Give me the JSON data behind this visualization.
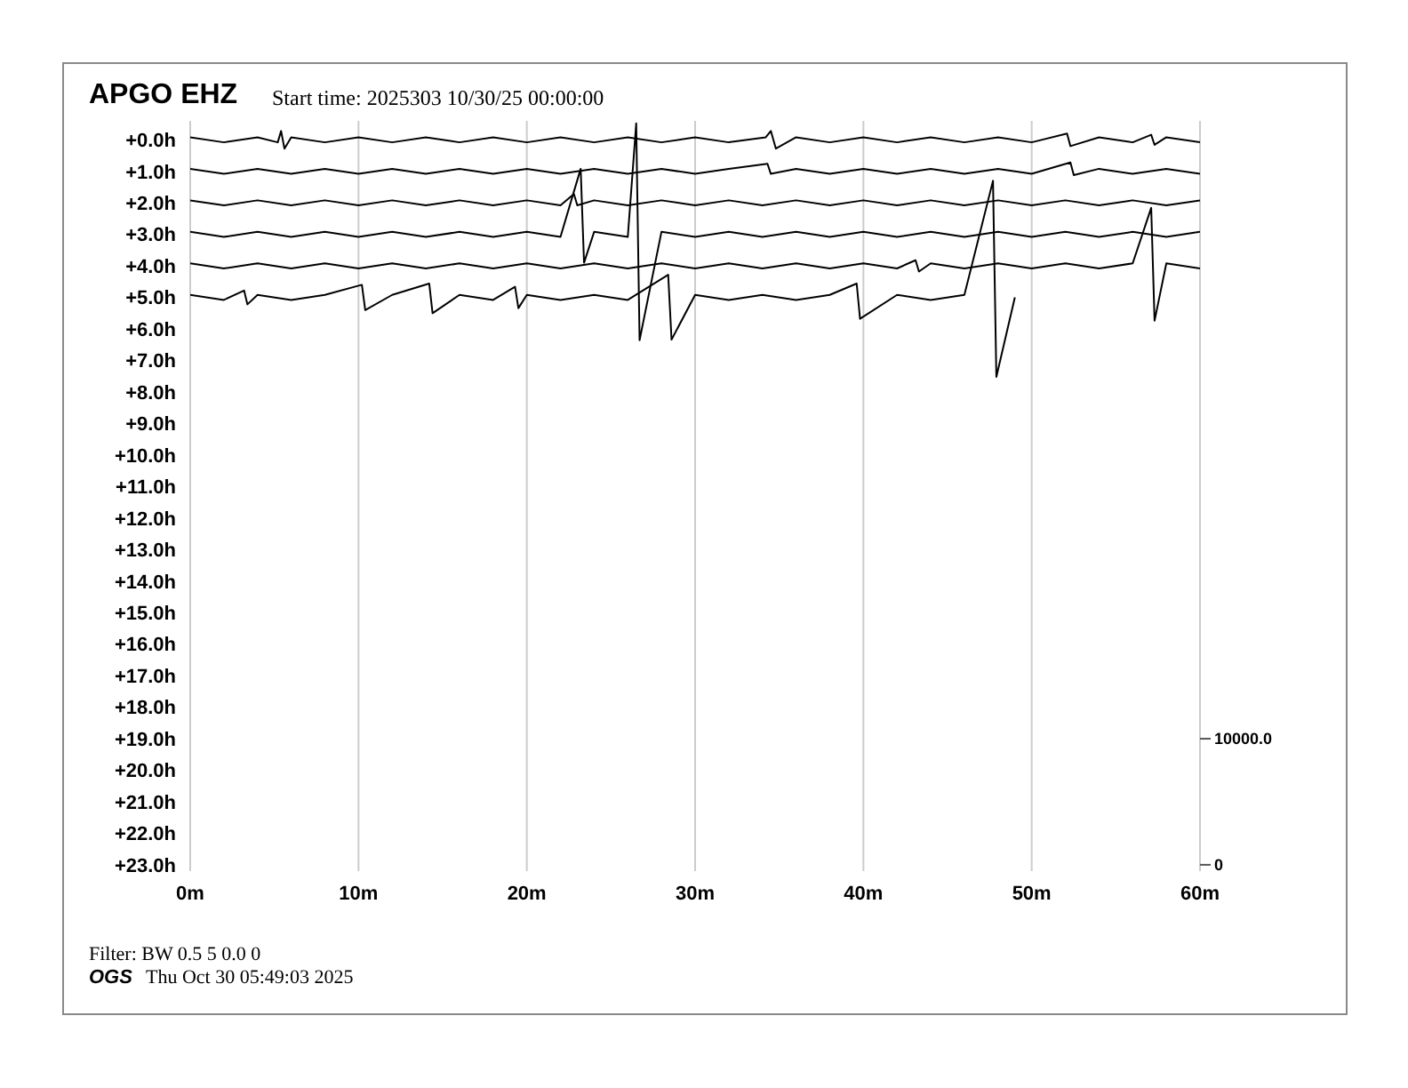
{
  "chart_data": {
    "type": "line",
    "title": "APGO EHZ",
    "subtitle": "Start time: 2025303 10/30/25 00:00:00",
    "annotations": [
      "Filter: BW 0.5 5 0.0 0",
      "OGS",
      "Thu Oct 30 05:49:03 2025"
    ],
    "xlim": [
      0,
      60
    ],
    "xticks": [
      {
        "value": 0,
        "label": "0m"
      },
      {
        "value": 10,
        "label": "10m"
      },
      {
        "value": 20,
        "label": "20m"
      },
      {
        "value": 30,
        "label": "30m"
      },
      {
        "value": 40,
        "label": "40m"
      },
      {
        "value": 50,
        "label": "50m"
      },
      {
        "value": 60,
        "label": "60m"
      }
    ],
    "ylim": [
      23.2,
      -0.6
    ],
    "yticks": [
      {
        "value": 0,
        "label": "+0.0h"
      },
      {
        "value": 1,
        "label": "+1.0h"
      },
      {
        "value": 2,
        "label": "+2.0h"
      },
      {
        "value": 3,
        "label": "+3.0h"
      },
      {
        "value": 4,
        "label": "+4.0h"
      },
      {
        "value": 5,
        "label": "+5.0h"
      },
      {
        "value": 6,
        "label": "+6.0h"
      },
      {
        "value": 7,
        "label": "+7.0h"
      },
      {
        "value": 8,
        "label": "+8.0h"
      },
      {
        "value": 9,
        "label": "+9.0h"
      },
      {
        "value": 10,
        "label": "+10.0h"
      },
      {
        "value": 11,
        "label": "+11.0h"
      },
      {
        "value": 12,
        "label": "+12.0h"
      },
      {
        "value": 13,
        "label": "+13.0h"
      },
      {
        "value": 14,
        "label": "+14.0h"
      },
      {
        "value": 15,
        "label": "+15.0h"
      },
      {
        "value": 16,
        "label": "+16.0h"
      },
      {
        "value": 17,
        "label": "+17.0h"
      },
      {
        "value": 18,
        "label": "+18.0h"
      },
      {
        "value": 19,
        "label": "+19.0h"
      },
      {
        "value": 20,
        "label": "+20.0h"
      },
      {
        "value": 21,
        "label": "+21.0h"
      },
      {
        "value": 22,
        "label": "+22.0h"
      },
      {
        "value": 23,
        "label": "+23.0h"
      }
    ],
    "y2lim": [
      -500,
      59000
    ],
    "y2ticks": [
      0,
      {
        "value": 10000,
        "label": "10000.0"
      }
    ],
    "grid": "x",
    "marker": "none",
    "line_style": "solid",
    "series": [
      {
        "color": "#000000",
        "x": [
          0,
          2,
          4,
          5.2,
          5.4,
          5.6,
          6,
          8,
          10,
          12,
          14,
          16,
          18,
          20,
          22,
          24,
          26,
          28,
          30,
          32,
          34.2,
          34.5,
          34.8,
          36,
          38,
          40,
          42,
          44,
          46,
          48,
          50,
          52.1,
          52.3,
          54,
          56,
          57.1,
          57.3,
          58,
          60
        ],
        "values": [
          -0.08,
          0.08,
          -0.08,
          0.08,
          -0.28,
          0.28,
          -0.08,
          0.08,
          -0.08,
          0.08,
          -0.08,
          0.08,
          -0.08,
          0.08,
          -0.08,
          0.08,
          -0.08,
          0.08,
          -0.08,
          0.08,
          -0.08,
          -0.28,
          0.28,
          -0.08,
          0.08,
          -0.08,
          0.08,
          -0.08,
          0.08,
          -0.08,
          0.08,
          -0.2,
          0.2,
          -0.08,
          0.08,
          -0.16,
          0.16,
          -0.08,
          0.08
        ]
      },
      {
        "color": "#000000",
        "x": [
          0,
          2,
          4,
          6,
          8,
          10,
          12,
          14,
          16,
          18,
          20,
          22,
          24,
          26,
          28,
          30,
          32,
          34.3,
          34.5,
          36,
          38,
          40,
          42,
          44,
          46,
          48,
          50,
          52.3,
          52.5,
          54,
          56,
          58,
          60
        ],
        "values": [
          0.92,
          1.08,
          0.92,
          1.08,
          0.92,
          1.08,
          0.92,
          1.08,
          0.92,
          1.08,
          0.92,
          1.08,
          0.92,
          1.08,
          0.92,
          1.08,
          0.92,
          0.76,
          1.08,
          0.92,
          1.08,
          0.92,
          1.08,
          0.92,
          1.08,
          0.92,
          1.08,
          0.72,
          1.12,
          0.92,
          1.08,
          0.92,
          1.08
        ]
      },
      {
        "color": "#000000",
        "x": [
          0,
          2,
          4,
          6,
          8,
          10,
          12,
          14,
          16,
          18,
          20,
          22,
          22.8,
          23,
          24,
          26,
          28,
          30,
          32,
          34,
          36,
          38,
          40,
          42,
          44,
          46,
          48,
          50,
          52,
          54,
          56,
          58,
          60
        ],
        "values": [
          1.92,
          2.08,
          1.92,
          2.08,
          1.92,
          2.08,
          1.92,
          2.08,
          1.92,
          2.08,
          1.92,
          2.08,
          1.72,
          2.08,
          1.92,
          2.08,
          1.92,
          2.08,
          1.92,
          2.08,
          1.92,
          2.08,
          1.92,
          2.08,
          1.92,
          2.08,
          1.92,
          2.08,
          1.92,
          2.08,
          1.92,
          2.08,
          1.92
        ]
      },
      {
        "color": "#000000",
        "x": [
          0,
          2,
          4,
          6,
          8,
          10,
          12,
          14,
          16,
          18,
          20,
          22,
          23.2,
          23.4,
          24,
          26,
          26.5,
          26.7,
          28,
          30,
          32,
          34,
          36,
          38,
          40,
          42,
          44,
          46,
          48,
          50,
          52,
          54,
          56,
          58,
          60
        ],
        "values": [
          2.92,
          3.08,
          2.92,
          3.08,
          2.92,
          3.08,
          2.92,
          3.08,
          2.92,
          3.08,
          2.92,
          3.08,
          0.92,
          3.9,
          2.92,
          3.08,
          -0.52,
          6.36,
          2.92,
          3.08,
          2.92,
          3.08,
          2.92,
          3.08,
          2.92,
          3.08,
          2.92,
          3.08,
          2.92,
          3.08,
          2.92,
          3.08,
          2.92,
          3.08,
          2.92
        ]
      },
      {
        "color": "#000000",
        "x": [
          0,
          2,
          4,
          6,
          8,
          10,
          12,
          14,
          16,
          18,
          20,
          22,
          24,
          26,
          28,
          30,
          32,
          34,
          36,
          38,
          40,
          42,
          43.1,
          43.3,
          44,
          46,
          48,
          50,
          52,
          54,
          56,
          57.1,
          57.3,
          58,
          60
        ],
        "values": [
          3.92,
          4.08,
          3.92,
          4.08,
          3.92,
          4.08,
          3.92,
          4.08,
          3.92,
          4.08,
          3.92,
          4.08,
          3.92,
          4.08,
          3.92,
          4.08,
          3.92,
          4.08,
          3.92,
          4.08,
          3.92,
          4.08,
          3.82,
          4.18,
          3.92,
          4.08,
          3.92,
          4.08,
          3.92,
          4.08,
          3.92,
          2.16,
          5.74,
          3.92,
          4.08
        ]
      },
      {
        "color": "#000000",
        "x": [
          0,
          2,
          3.2,
          3.4,
          4,
          6,
          8,
          10.2,
          10.4,
          12,
          14.2,
          14.4,
          16,
          18,
          19.3,
          19.5,
          20,
          22,
          24,
          26,
          28.4,
          28.6,
          30,
          32,
          34,
          36,
          38,
          39.6,
          39.8,
          42,
          44,
          46,
          47.7,
          47.9,
          49
        ],
        "values": [
          4.92,
          5.08,
          4.78,
          5.22,
          4.92,
          5.08,
          4.92,
          4.6,
          5.4,
          4.92,
          4.56,
          5.5,
          4.92,
          5.08,
          4.66,
          5.34,
          4.92,
          5.08,
          4.92,
          5.08,
          4.28,
          6.34,
          4.92,
          5.08,
          4.92,
          5.08,
          4.92,
          4.56,
          5.68,
          4.92,
          5.08,
          4.92,
          1.3,
          7.52,
          5
        ]
      }
    ]
  }
}
